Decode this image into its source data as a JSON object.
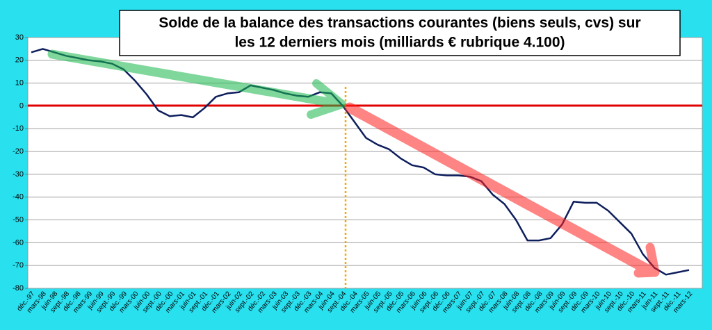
{
  "chart_data": {
    "type": "line",
    "title": [
      "Solde de la balance des transactions courantes (biens seuls, cvs) sur",
      "les 12 derniers mois (milliards € rubrique 4.100)"
    ],
    "categories": [
      "déc.-97",
      "mars-98",
      "juin-98",
      "sept.-98",
      "déc.-98",
      "mars-99",
      "juin-99",
      "sept.-99",
      "déc.-99",
      "mars-00",
      "juin-00",
      "sept.-00",
      "déc.-00",
      "mars-01",
      "juin-01",
      "sept.-01",
      "déc.-01",
      "mars-02",
      "juin-02",
      "sept.-02",
      "déc.-02",
      "mars-03",
      "juin-03",
      "sept.-03",
      "déc.-03",
      "mars-04",
      "juin-04",
      "sept.-04",
      "déc.-04",
      "mars-05",
      "juin-05",
      "sept.-05",
      "déc.-05",
      "mars-06",
      "juin-06",
      "sept.-06",
      "déc.-06",
      "mars-07",
      "juin-07",
      "sept.-07",
      "déc.-07",
      "mars-08",
      "juin-08",
      "sept.-08",
      "déc.-08",
      "mars-09",
      "juin-09",
      "sept.-09",
      "déc.-09",
      "mars-10",
      "juin-10",
      "sept.-10",
      "déc.-10",
      "mars-11",
      "juin-11",
      "sept.-11",
      "déc.-11",
      "mars-12"
    ],
    "series": [
      {
        "color": "#0d1e5c",
        "values": [
          23.5,
          25,
          23.5,
          22,
          21,
          20,
          19.5,
          18.5,
          16,
          11,
          5,
          -2,
          -4.5,
          -4,
          -5,
          -1,
          4,
          5.5,
          6,
          9,
          8,
          7,
          5.5,
          4.5,
          4,
          6,
          5.5,
          0,
          -7,
          -14,
          -17,
          -19,
          -23,
          -26,
          -27,
          -30,
          -30.5,
          -30.5,
          -31,
          -33,
          -39,
          -43,
          -50,
          -59,
          -59,
          -58,
          -52,
          -42,
          -42.5,
          -42.5,
          -46,
          -51,
          -56,
          -65,
          -71,
          -74,
          -73,
          -72
        ]
      }
    ],
    "ylim": [
      -80,
      30
    ],
    "yticks": [
      -80,
      -70,
      -60,
      -50,
      -40,
      -30,
      -20,
      -10,
      0,
      10,
      20,
      30
    ],
    "grid": true
  }
}
